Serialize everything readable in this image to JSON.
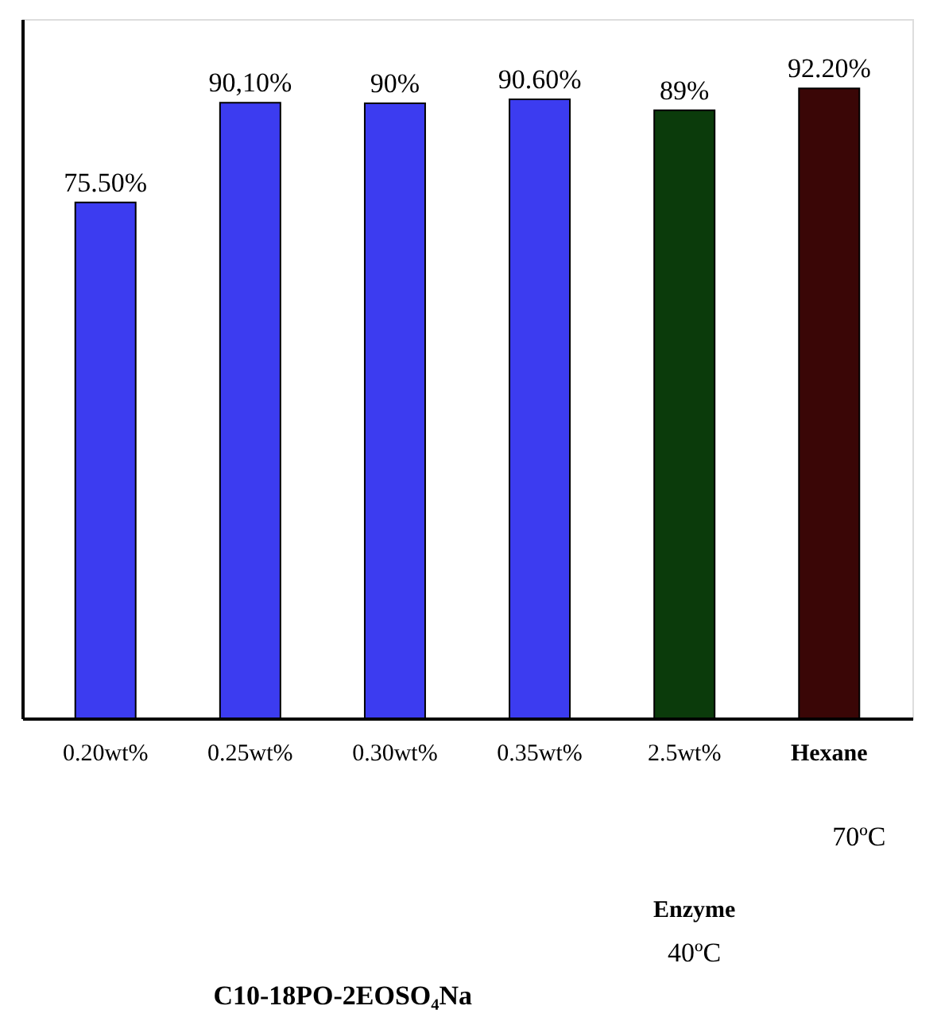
{
  "chart_data": {
    "type": "bar",
    "categories": [
      "0.20wt%",
      "0.25wt%",
      "0.30wt%",
      "0.35wt%",
      "2.5wt%",
      "Hexane"
    ],
    "values": [
      75.5,
      90.1,
      90,
      90.6,
      89,
      92.2
    ],
    "colors": [
      "#3c3cf0",
      "#3c3cf0",
      "#3c3cf0",
      "#3c3cf0",
      "#0b3b0b",
      "#3a0606"
    ],
    "value_labels": [
      "75.50%",
      "90,10%",
      "90%",
      "90.60%",
      "89%",
      "92.20%"
    ],
    "relative": false,
    "grid": false,
    "annotations": [
      "70ºC",
      "Enzyme",
      "40ºC",
      "C10-18PO-2EOSO₄Na"
    ]
  }
}
